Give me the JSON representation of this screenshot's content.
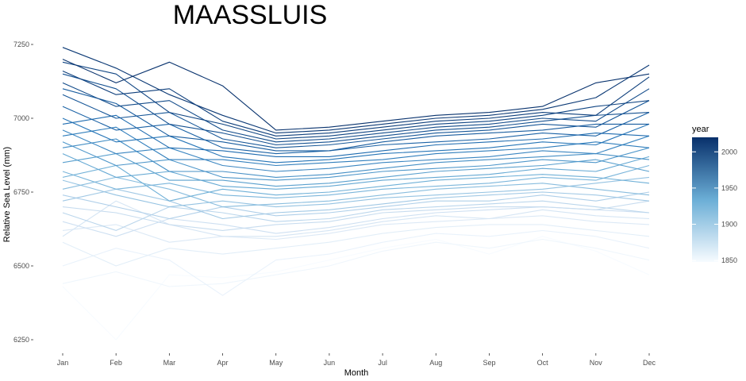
{
  "chart_data": {
    "type": "line",
    "title": "MAASSLUIS",
    "xlabel": "Month",
    "ylabel": "Relative Sea Level (mm)",
    "categories": [
      "Jan",
      "Feb",
      "Mar",
      "Apr",
      "May",
      "Jun",
      "Jul",
      "Aug",
      "Sep",
      "Oct",
      "Nov",
      "Dec"
    ],
    "ylim": [
      6200,
      7270
    ],
    "yticks": [
      6250,
      6500,
      6750,
      7000,
      7250
    ],
    "grid": false,
    "legend": {
      "title": "year",
      "placement": "right",
      "type": "continuous-colorbar",
      "range": [
        1848,
        2020
      ],
      "ticks": [
        1850,
        1900,
        1950,
        2000
      ],
      "color_low": "#f7fbff",
      "color_high": "#08306b"
    },
    "series_summary": "One line per year; values are approximate monthly means per era",
    "series": [
      {
        "name": "1848",
        "values": [
          6430,
          6250,
          6470,
          6460,
          6480,
          6520,
          6560,
          6590,
          6540,
          6600,
          6550,
          6470
        ]
      },
      {
        "name": "1855",
        "values": [
          6440,
          6480,
          6430,
          6440,
          6470,
          6500,
          6550,
          6580,
          6560,
          6590,
          6560,
          6520
        ]
      },
      {
        "name": "1860",
        "values": [
          6500,
          6560,
          6520,
          6400,
          6520,
          6540,
          6580,
          6610,
          6600,
          6620,
          6600,
          6560
        ]
      },
      {
        "name": "1866",
        "values": [
          6580,
          6500,
          6560,
          6540,
          6560,
          6580,
          6610,
          6630,
          6640,
          6640,
          6620,
          6600
        ]
      },
      {
        "name": "1872",
        "values": [
          6620,
          6640,
          6580,
          6600,
          6590,
          6610,
          6640,
          6650,
          6660,
          6670,
          6650,
          6640
        ]
      },
      {
        "name": "1878",
        "values": [
          6600,
          6720,
          6640,
          6600,
          6600,
          6620,
          6650,
          6670,
          6660,
          6690,
          6670,
          6660
        ]
      },
      {
        "name": "1884",
        "values": [
          6650,
          6600,
          6660,
          6640,
          6610,
          6630,
          6660,
          6680,
          6690,
          6700,
          6690,
          6680
        ]
      },
      {
        "name": "1890",
        "values": [
          6700,
          6680,
          6640,
          6620,
          6640,
          6650,
          6680,
          6690,
          6700,
          6700,
          6690,
          6720
        ]
      },
      {
        "name": "1896",
        "values": [
          6680,
          6620,
          6700,
          6680,
          6650,
          6660,
          6690,
          6700,
          6710,
          6720,
          6700,
          6680
        ]
      },
      {
        "name": "1902",
        "values": [
          6740,
          6700,
          6660,
          6700,
          6670,
          6680,
          6700,
          6720,
          6720,
          6740,
          6720,
          6750
        ]
      },
      {
        "name": "1908",
        "values": [
          6720,
          6760,
          6720,
          6660,
          6680,
          6690,
          6710,
          6730,
          6740,
          6750,
          6740,
          6720
        ]
      },
      {
        "name": "1914",
        "values": [
          6790,
          6740,
          6700,
          6720,
          6700,
          6710,
          6730,
          6740,
          6750,
          6760,
          6780,
          6800
        ]
      },
      {
        "name": "1920",
        "values": [
          6760,
          6800,
          6760,
          6700,
          6710,
          6720,
          6740,
          6760,
          6770,
          6780,
          6760,
          6740
        ]
      },
      {
        "name": "1926",
        "values": [
          6820,
          6760,
          6780,
          6740,
          6730,
          6740,
          6760,
          6770,
          6780,
          6800,
          6790,
          6840
        ]
      },
      {
        "name": "1932",
        "values": [
          6800,
          6840,
          6720,
          6760,
          6740,
          6750,
          6770,
          6790,
          6800,
          6810,
          6800,
          6780
        ]
      },
      {
        "name": "1938",
        "values": [
          6880,
          6800,
          6820,
          6770,
          6760,
          6770,
          6790,
          6800,
          6810,
          6830,
          6820,
          6870
        ]
      },
      {
        "name": "1944",
        "values": [
          6850,
          6880,
          6790,
          6790,
          6770,
          6780,
          6800,
          6820,
          6830,
          6840,
          6860,
          6820
        ]
      },
      {
        "name": "1950",
        "values": [
          6920,
          6840,
          6860,
          6800,
          6790,
          6800,
          6820,
          6830,
          6840,
          6860,
          6850,
          6900
        ]
      },
      {
        "name": "1956",
        "values": [
          6900,
          6930,
          6820,
          6820,
          6800,
          6810,
          6830,
          6850,
          6860,
          6870,
          6880,
          6860
        ]
      },
      {
        "name": "1962",
        "values": [
          6960,
          6880,
          6900,
          6840,
          6820,
          6830,
          6850,
          6860,
          6870,
          6890,
          6880,
          6940
        ]
      },
      {
        "name": "1968",
        "values": [
          6940,
          6970,
          6860,
          6860,
          6840,
          6850,
          6860,
          6880,
          6890,
          6900,
          6920,
          6900
        ]
      },
      {
        "name": "1974",
        "values": [
          7000,
          6920,
          6940,
          6870,
          6850,
          6860,
          6880,
          6890,
          6900,
          6920,
          6910,
          6980
        ]
      },
      {
        "name": "1980",
        "values": [
          6980,
          7010,
          6900,
          6890,
          6870,
          6870,
          6890,
          6910,
          6920,
          6930,
          6950,
          6940
        ]
      },
      {
        "name": "1986",
        "values": [
          7040,
          6960,
          6980,
          6900,
          6880,
          6890,
          6910,
          6920,
          6930,
          6950,
          6940,
          7020
        ]
      },
      {
        "name": "1990",
        "values": [
          7100,
          7050,
          6940,
          6920,
          6890,
          6890,
          6920,
          6940,
          6950,
          6960,
          6980,
          6980
        ]
      },
      {
        "name": "1994",
        "values": [
          7080,
          7000,
          7020,
          6930,
          6900,
          6910,
          6930,
          6950,
          6960,
          6980,
          6970,
          7060
        ]
      },
      {
        "name": "1998",
        "values": [
          7150,
          7100,
          6980,
          6950,
          6910,
          6920,
          6940,
          6960,
          6970,
          6990,
          7010,
          7020
        ]
      },
      {
        "name": "2002",
        "values": [
          7120,
          7040,
          7060,
          6960,
          6920,
          6930,
          6950,
          6970,
          6980,
          7000,
          6990,
          7100
        ]
      },
      {
        "name": "2006",
        "values": [
          7190,
          7150,
          7020,
          6980,
          6930,
          6940,
          6960,
          6980,
          6990,
          7010,
          7040,
          7060
        ]
      },
      {
        "name": "2010",
        "values": [
          7160,
          7080,
          7100,
          6990,
          6940,
          6950,
          6970,
          6990,
          7000,
          7020,
          7010,
          7140
        ]
      },
      {
        "name": "2014",
        "values": [
          7240,
          7170,
          7080,
          7010,
          6950,
          6960,
          6980,
          7000,
          7010,
          7030,
          7070,
          7180
        ]
      },
      {
        "name": "2018",
        "values": [
          7200,
          7120,
          7190,
          7110,
          6960,
          6970,
          6990,
          7010,
          7020,
          7040,
          7120,
          7150
        ]
      }
    ]
  }
}
